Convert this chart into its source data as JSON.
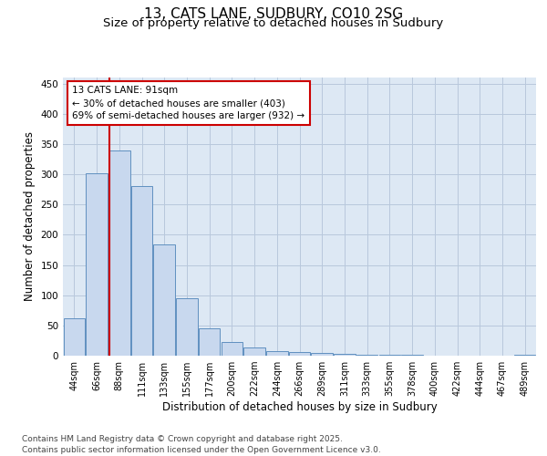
{
  "title_line1": "13, CATS LANE, SUDBURY, CO10 2SG",
  "title_line2": "Size of property relative to detached houses in Sudbury",
  "xlabel": "Distribution of detached houses by size in Sudbury",
  "ylabel": "Number of detached properties",
  "categories": [
    "44sqm",
    "66sqm",
    "88sqm",
    "111sqm",
    "133sqm",
    "155sqm",
    "177sqm",
    "200sqm",
    "222sqm",
    "244sqm",
    "266sqm",
    "289sqm",
    "311sqm",
    "333sqm",
    "355sqm",
    "378sqm",
    "400sqm",
    "422sqm",
    "444sqm",
    "467sqm",
    "489sqm"
  ],
  "values": [
    62,
    301,
    340,
    280,
    184,
    95,
    45,
    22,
    13,
    8,
    6,
    4,
    3,
    2,
    2,
    1,
    0,
    0,
    0,
    0,
    2
  ],
  "bar_color": "#c8d8ee",
  "bar_edge_color": "#6090c0",
  "red_line_index": 2,
  "annotation_text": "13 CATS LANE: 91sqm\n← 30% of detached houses are smaller (403)\n69% of semi-detached houses are larger (932) →",
  "annotation_box_color": "#ffffff",
  "annotation_box_edge": "#cc0000",
  "red_line_color": "#cc0000",
  "grid_color": "#b8c8dc",
  "background_color": "#dde8f4",
  "ylim": [
    0,
    460
  ],
  "yticks": [
    0,
    50,
    100,
    150,
    200,
    250,
    300,
    350,
    400,
    450
  ],
  "footer_text": "Contains HM Land Registry data © Crown copyright and database right 2025.\nContains public sector information licensed under the Open Government Licence v3.0.",
  "title_fontsize": 11,
  "subtitle_fontsize": 9.5,
  "tick_fontsize": 7,
  "label_fontsize": 8.5,
  "footer_fontsize": 6.5
}
